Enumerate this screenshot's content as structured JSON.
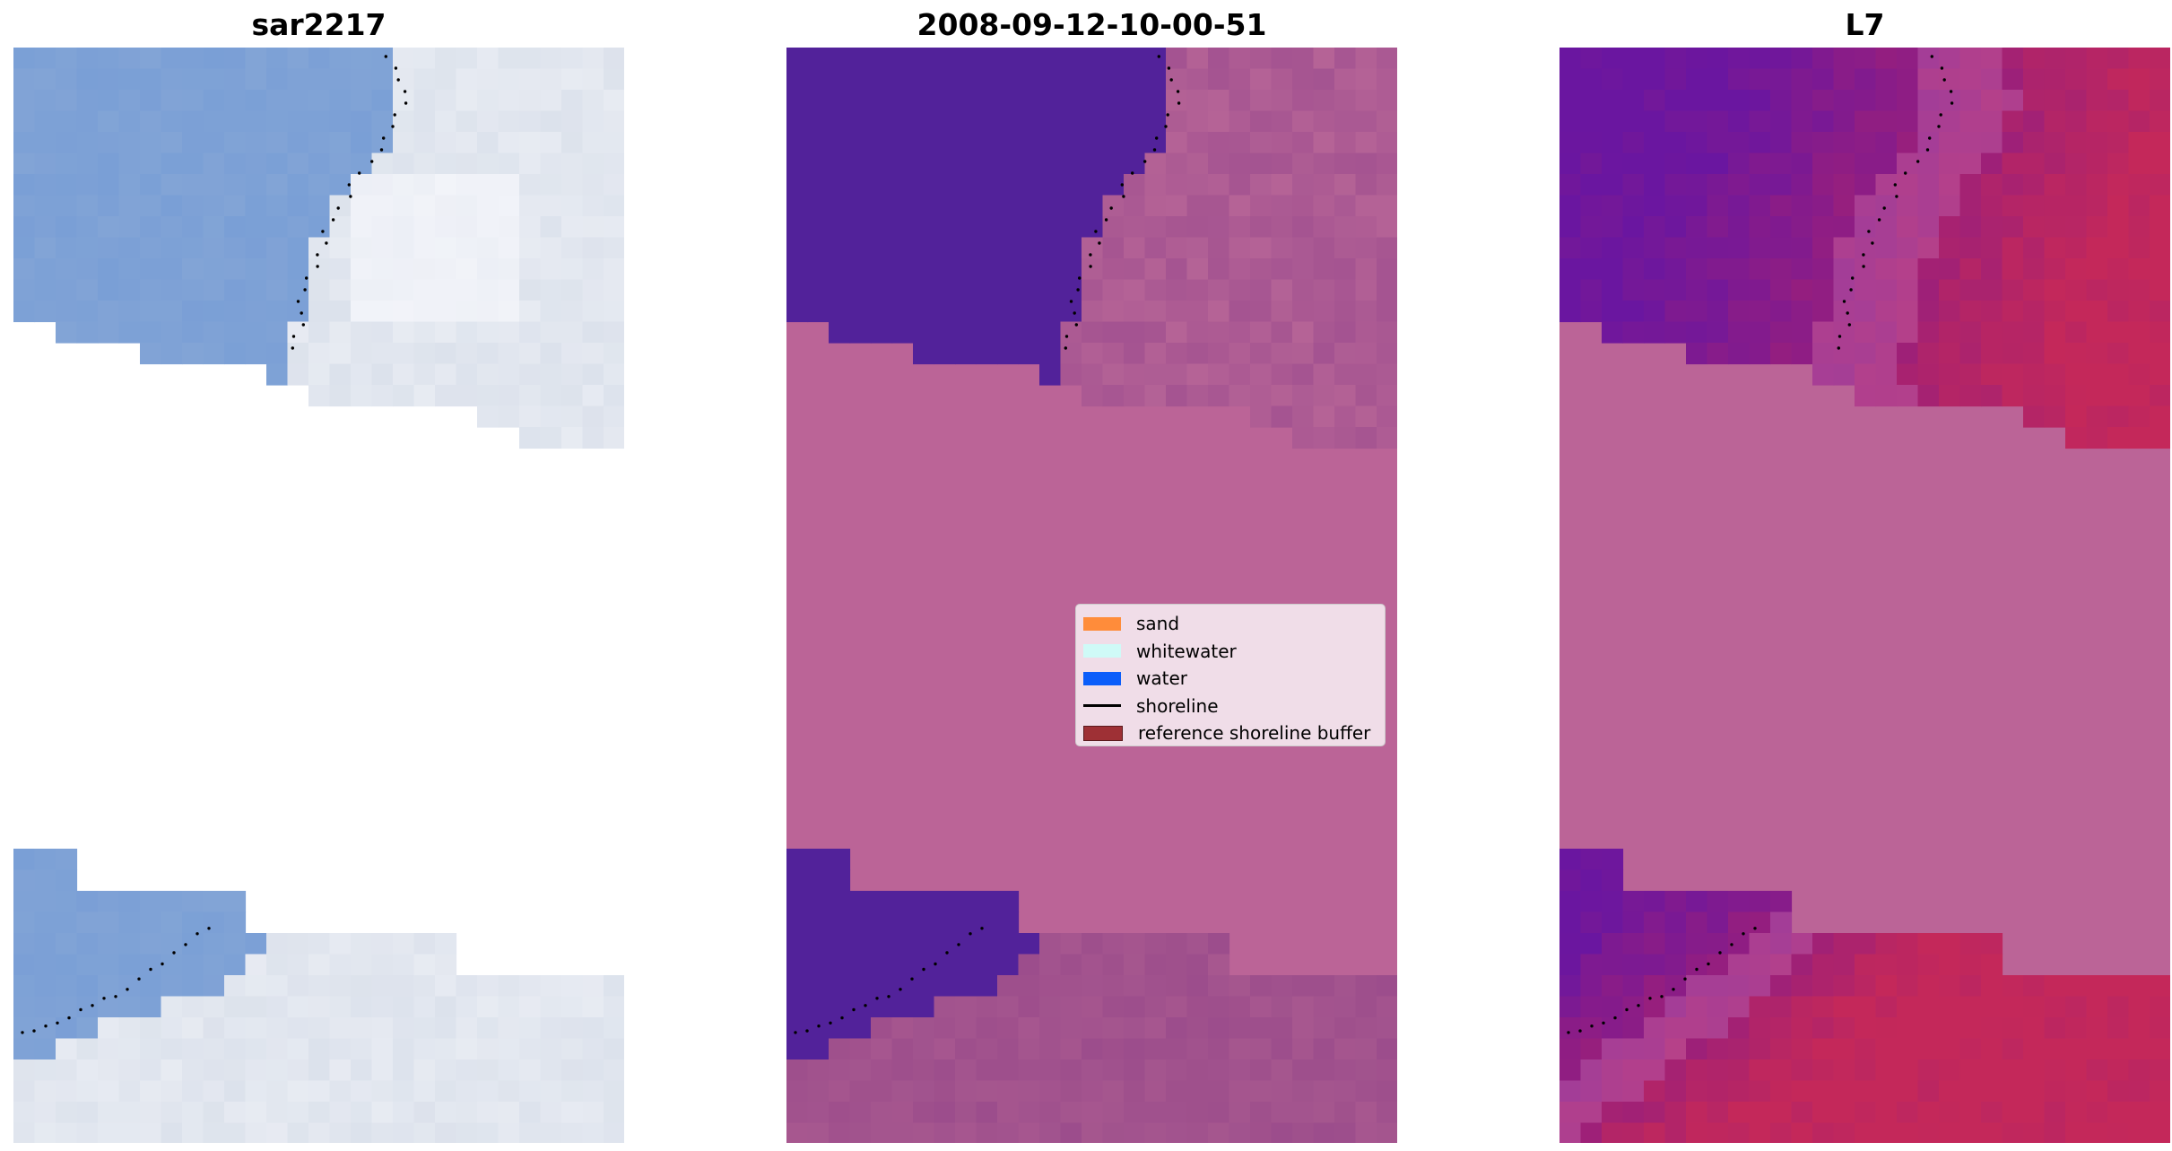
{
  "panels": [
    {
      "title": "sar2217"
    },
    {
      "title": "2008-09-12-10-00-51"
    },
    {
      "title": "L7"
    }
  ],
  "legend": {
    "items": [
      {
        "label": "sand",
        "type": "patch",
        "color": "#FF8C3A",
        "icon": "patch-icon"
      },
      {
        "label": "whitewater",
        "type": "patch",
        "color": "#CFFAF7",
        "icon": "patch-icon"
      },
      {
        "label": "water",
        "type": "patch",
        "color": "#0B5DFA",
        "icon": "patch-icon"
      },
      {
        "label": "shoreline",
        "type": "line",
        "color": "#000000",
        "icon": "line-icon"
      },
      {
        "label": "reference shoreline buffer",
        "type": "patch",
        "color": "#9E3035",
        "icon": "patch-icon"
      }
    ]
  },
  "colors": {
    "rgb_water": "#7A9FD6",
    "rgb_land": "#DCE2EC",
    "class_water": "#52229A",
    "class_land": "#B56396",
    "nodata_fill": "#BB6497",
    "mndwi_water": "#6A16A0",
    "mndwi_land": "#C4285A"
  }
}
